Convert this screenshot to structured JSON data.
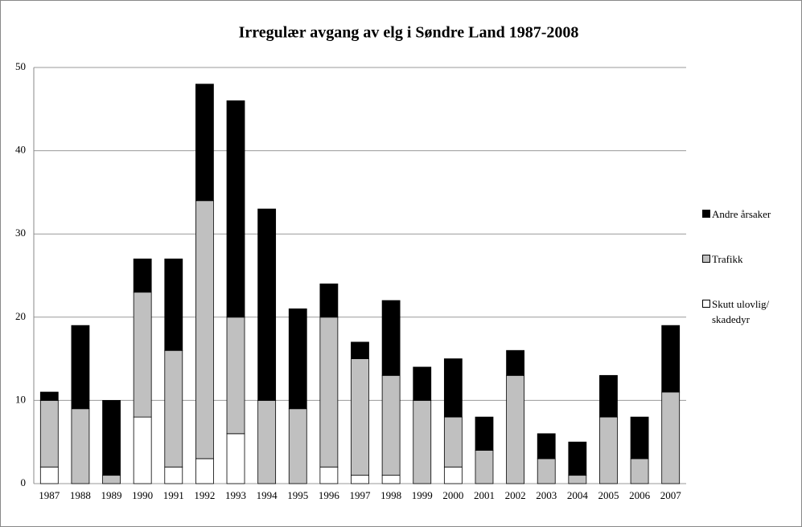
{
  "chart_data": {
    "type": "stacked_bar",
    "title": "Irregulær avgang av elg i Søndre Land 1987-2008",
    "categories": [
      "1987",
      "1988",
      "1989",
      "1990",
      "1991",
      "1992",
      "1993",
      "1994",
      "1995",
      "1996",
      "1997",
      "1998",
      "1999",
      "2000",
      "2001",
      "2002",
      "2003",
      "2004",
      "2005",
      "2006",
      "2007"
    ],
    "series": [
      {
        "name": "Skutt ulovlig/ skadedyr",
        "color": "#ffffff",
        "values": [
          2,
          0,
          0,
          8,
          2,
          3,
          6,
          0,
          0,
          2,
          1,
          1,
          0,
          2,
          0,
          0,
          0,
          0,
          0,
          0,
          0
        ]
      },
      {
        "name": "Trafikk",
        "color": "#c0c0c0",
        "values": [
          8,
          9,
          1,
          15,
          14,
          31,
          14,
          10,
          9,
          18,
          14,
          12,
          10,
          6,
          4,
          13,
          3,
          1,
          8,
          3,
          11
        ]
      },
      {
        "name": "Andre årsaker",
        "color": "#000000",
        "values": [
          1,
          10,
          9,
          4,
          11,
          14,
          26,
          23,
          12,
          4,
          2,
          9,
          4,
          7,
          4,
          3,
          3,
          4,
          5,
          5,
          8
        ]
      }
    ],
    "ylim": [
      0,
      50
    ],
    "yticks": [
      0,
      10,
      20,
      30,
      40,
      50
    ],
    "grid": true
  }
}
